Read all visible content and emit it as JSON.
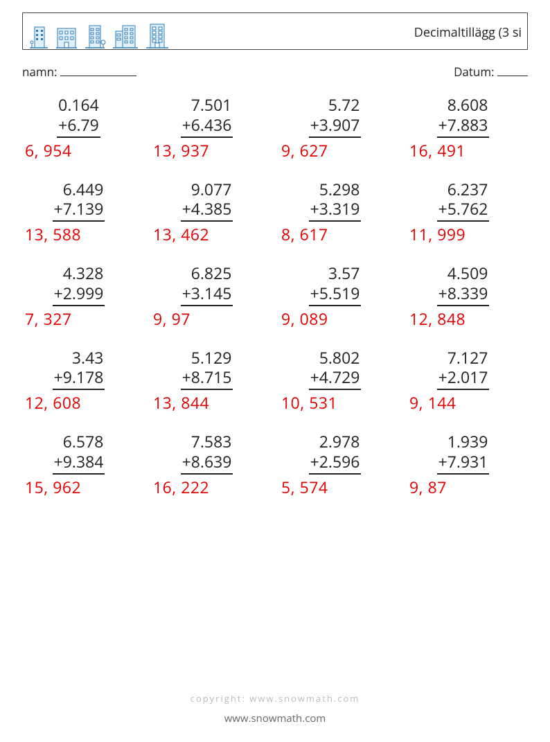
{
  "header": {
    "title": "Decimaltillägg (3 si"
  },
  "meta": {
    "name_label": "namn:",
    "date_label": "Datum:"
  },
  "buildings": {
    "count": 5
  },
  "problems": [
    [
      {
        "a": "0.164",
        "b": "+6.79",
        "ans": "6, 954"
      },
      {
        "a": "7.501",
        "b": "+6.436",
        "ans": "13, 937"
      },
      {
        "a": "5.72",
        "b": "+3.907",
        "ans": "9, 627"
      },
      {
        "a": "8.608",
        "b": "+7.883",
        "ans": "16, 491"
      }
    ],
    [
      {
        "a": "6.449",
        "b": "+7.139",
        "ans": "13, 588"
      },
      {
        "a": "9.077",
        "b": "+4.385",
        "ans": "13, 462"
      },
      {
        "a": "5.298",
        "b": "+3.319",
        "ans": "8, 617"
      },
      {
        "a": "6.237",
        "b": "+5.762",
        "ans": "11, 999"
      }
    ],
    [
      {
        "a": "4.328",
        "b": "+2.999",
        "ans": "7, 327"
      },
      {
        "a": "6.825",
        "b": "+3.145",
        "ans": " 9, 97"
      },
      {
        "a": "3.57",
        "b": "+5.519",
        "ans": "9, 089"
      },
      {
        "a": "4.509",
        "b": "+8.339",
        "ans": "12, 848"
      }
    ],
    [
      {
        "a": "3.43",
        "b": "+9.178",
        "ans": "12, 608"
      },
      {
        "a": "5.129",
        "b": "+8.715",
        "ans": "13, 844"
      },
      {
        "a": "5.802",
        "b": "+4.729",
        "ans": "10, 531"
      },
      {
        "a": "7.127",
        "b": "+2.017",
        "ans": " 9, 144"
      }
    ],
    [
      {
        "a": "6.578",
        "b": "+9.384",
        "ans": "15, 962"
      },
      {
        "a": "7.583",
        "b": "+8.639",
        "ans": "16, 222"
      },
      {
        "a": "2.978",
        "b": "+2.596",
        "ans": "5, 574"
      },
      {
        "a": "1.939",
        "b": "+7.931",
        "ans": " 9, 87"
      }
    ]
  ],
  "footer": {
    "copyright": "copyright: www.snowmath.com",
    "url": "www.snowmath.com"
  },
  "style": {
    "answer_color": "#e40000",
    "text_color": "#222222",
    "rule_color": "#222222",
    "building_stroke": "#2b7bb9",
    "building_fill": "#dff0fb"
  }
}
